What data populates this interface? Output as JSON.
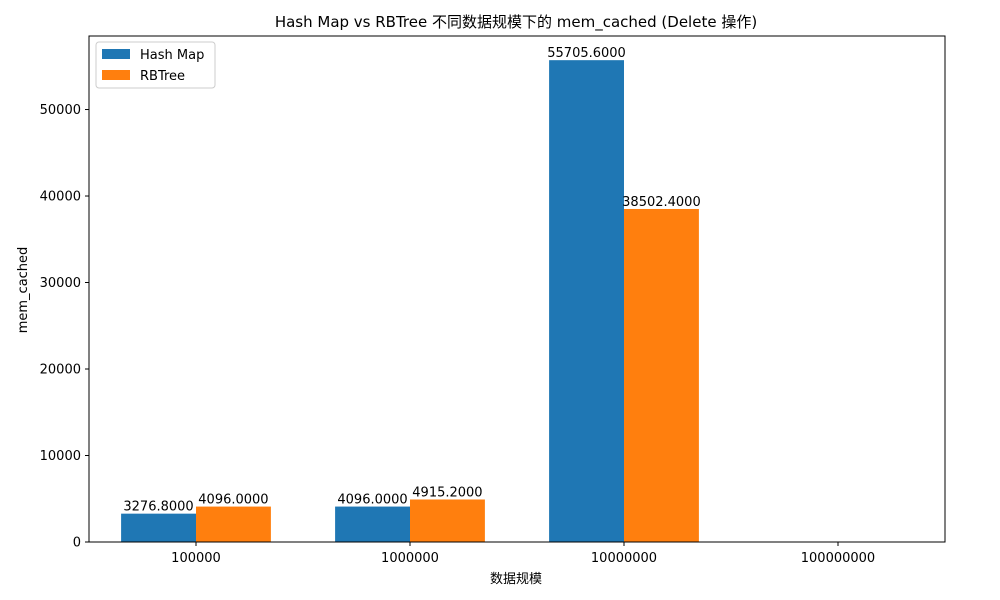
{
  "chart_data": {
    "type": "bar",
    "title": "Hash Map vs RBTree 不同数据规模下的 mem_cached (Delete 操作)",
    "xlabel": "数据规模",
    "ylabel": "mem_cached",
    "categories": [
      "100000",
      "1000000",
      "10000000",
      "100000000"
    ],
    "series": [
      {
        "name": "Hash Map",
        "color": "#1f77b4",
        "values": [
          3276.8,
          4096.0,
          55705.6,
          null
        ],
        "labels": [
          "3276.8000",
          "4096.0000",
          "55705.6000",
          ""
        ]
      },
      {
        "name": "RBTree",
        "color": "#ff7f0e",
        "values": [
          4096.0,
          4915.2,
          38502.4,
          null
        ],
        "labels": [
          "4096.0000",
          "4915.2000",
          "38502.4000",
          ""
        ]
      }
    ],
    "ylim": [
      0,
      58500
    ],
    "yticks": [
      0,
      10000,
      20000,
      30000,
      40000,
      50000
    ],
    "ytick_labels": [
      "0",
      "10000",
      "20000",
      "30000",
      "40000",
      "50000"
    ],
    "grid": false,
    "legend_position": "upper-left"
  }
}
